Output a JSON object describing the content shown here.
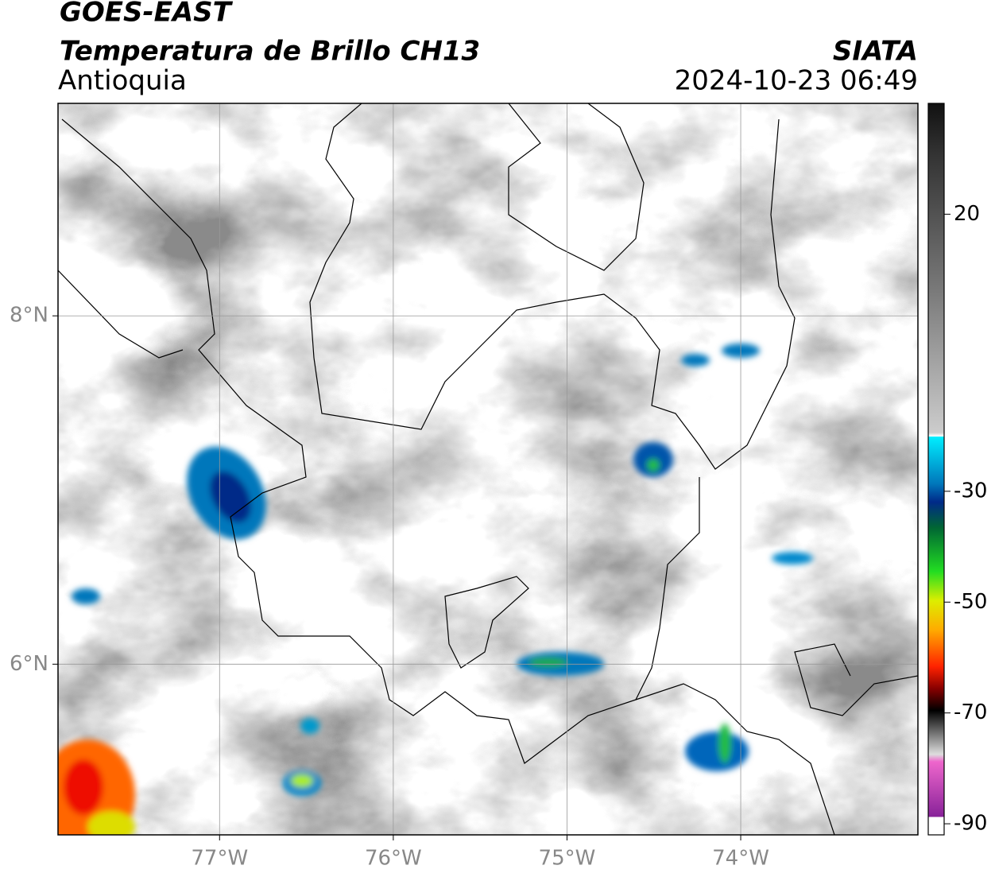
{
  "header": {
    "title": "GOES-EAST",
    "subtitle": "Temperatura de Brillo CH13",
    "region": "Antioquia",
    "source": "SIATA",
    "datetime": "2024-10-23 06:49"
  },
  "map": {
    "xlim": [
      -77.93,
      -72.98
    ],
    "ylim": [
      5.02,
      9.22
    ],
    "xticks": [
      {
        "value": -77,
        "label": "77°W"
      },
      {
        "value": -76,
        "label": "76°W"
      },
      {
        "value": -75,
        "label": "75°W"
      },
      {
        "value": -74,
        "label": "74°W"
      }
    ],
    "yticks": [
      {
        "value": 8,
        "label": "8°N"
      },
      {
        "value": 6,
        "label": "6°N"
      }
    ],
    "grid": true
  },
  "colorbar": {
    "lim": [
      -92,
      40
    ],
    "ticks": [
      20,
      -30,
      -50,
      -70,
      -90
    ]
  }
}
